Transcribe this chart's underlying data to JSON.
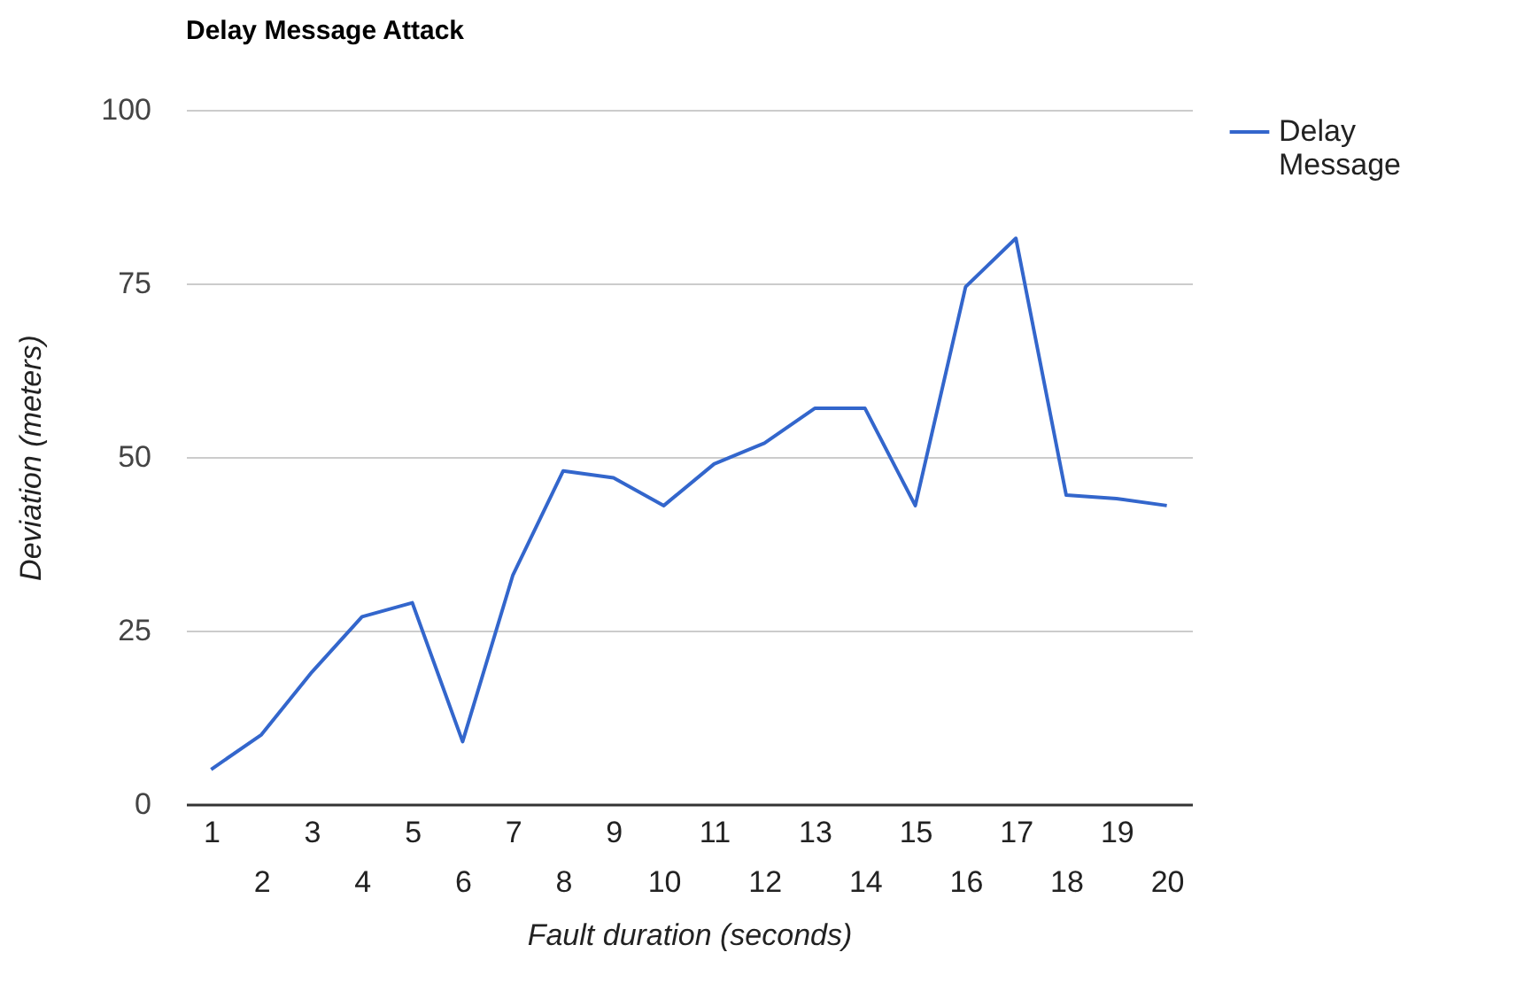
{
  "chart_data": {
    "type": "line",
    "title": "Delay Message Attack",
    "xlabel": "Fault duration (seconds)",
    "ylabel": "Deviation (meters)",
    "categories": [
      "1",
      "2",
      "3",
      "4",
      "5",
      "6",
      "7",
      "8",
      "9",
      "10",
      "11",
      "12",
      "13",
      "14",
      "15",
      "16",
      "17",
      "18",
      "19",
      "20"
    ],
    "series": [
      {
        "name": "Delay Message",
        "color": "#3366cc",
        "values": [
          5,
          10,
          19,
          27,
          29,
          9,
          33,
          48,
          47,
          43,
          49,
          52,
          57,
          57,
          43,
          74.5,
          81.5,
          44.5,
          44,
          43
        ]
      }
    ],
    "ylim": [
      0,
      100
    ],
    "yticks": [
      0,
      25,
      50,
      75,
      100
    ],
    "grid": "y",
    "legend": "top right"
  }
}
